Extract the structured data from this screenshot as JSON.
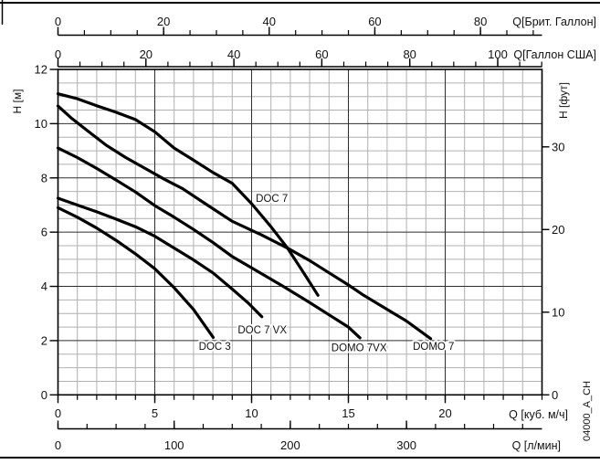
{
  "figure_id": "04000_A_CH",
  "colors": {
    "curve": "#000000",
    "grid_minor": "#b0b0b0",
    "grid_major": "#2e2e2e",
    "border": "#000000",
    "text": "#111111",
    "background": "#ffffff"
  },
  "chart_data": {
    "type": "line",
    "title": "",
    "xlim_m3h": [
      0,
      25
    ],
    "ylim_m": [
      0,
      12
    ],
    "grid": {
      "x_minor_step_m3h": 1,
      "x_major_step_m3h": 5,
      "y_minor_step_m": 0.5,
      "y_major_step_m": 2
    },
    "x_axes": [
      {
        "id": "brit",
        "label": "Q[Брит. Галлон]",
        "units_per_m3h": 3.6663,
        "majors": [
          0,
          20,
          40,
          60,
          80
        ],
        "minor_step": 5,
        "minor_max": 90,
        "position": "top-floating"
      },
      {
        "id": "usa",
        "label": "Q[Галлон США]",
        "units_per_m3h": 4.4029,
        "majors": [
          0,
          20,
          40,
          60,
          80,
          100
        ],
        "minor_step": 5,
        "minor_max": 110,
        "position": "top-attached"
      },
      {
        "id": "m3h",
        "label": "Q [куб. м/ч]",
        "units_per_m3h": 1,
        "majors": [
          0,
          5,
          10,
          15,
          20
        ],
        "minor_step": 1,
        "minor_max": 25,
        "position": "bottom-border"
      },
      {
        "id": "lmin",
        "label": "Q [л/мин]",
        "units_per_m3h": 16.667,
        "majors": [
          0,
          100,
          200,
          300
        ],
        "minor_step": 25,
        "minor_max": 400,
        "position": "bottom-floating"
      }
    ],
    "y_axes": [
      {
        "id": "m",
        "label": "H [м]",
        "m_per_unit": 1,
        "majors": [
          0,
          2,
          4,
          6,
          8,
          10,
          12
        ],
        "side": "left"
      },
      {
        "id": "ft",
        "label": "H [фут]",
        "m_per_unit": 0.3048,
        "majors": [
          0,
          10,
          20,
          30
        ],
        "side": "right"
      }
    ],
    "series": [
      {
        "name": "DOC 7",
        "label_at": [
          11.05,
          7.25
        ],
        "points": [
          [
            0,
            11.1
          ],
          [
            1,
            10.92
          ],
          [
            2,
            10.66
          ],
          [
            3,
            10.42
          ],
          [
            4,
            10.15
          ],
          [
            5,
            9.7
          ],
          [
            6,
            9.1
          ],
          [
            6.9,
            8.7
          ],
          [
            8,
            8.2
          ],
          [
            9,
            7.8
          ],
          [
            10,
            7.05
          ],
          [
            11,
            6.2
          ],
          [
            11.86,
            5.41
          ],
          [
            12.6,
            4.6
          ],
          [
            13.43,
            3.67
          ]
        ]
      },
      {
        "name": "DOMO 7",
        "label_at": [
          19.4,
          1.8
        ],
        "points": [
          [
            0,
            10.65
          ],
          [
            0.7,
            10.2
          ],
          [
            1.5,
            9.75
          ],
          [
            2.5,
            9.2
          ],
          [
            3.5,
            8.75
          ],
          [
            4.5,
            8.35
          ],
          [
            5.5,
            7.95
          ],
          [
            6.44,
            7.6
          ],
          [
            7.5,
            7.1
          ],
          [
            9,
            6.4
          ],
          [
            10.5,
            5.9
          ],
          [
            11.86,
            5.41
          ],
          [
            13,
            4.95
          ],
          [
            14,
            4.5
          ],
          [
            15,
            4.05
          ],
          [
            15.79,
            3.67
          ],
          [
            17,
            3.15
          ],
          [
            18,
            2.72
          ],
          [
            19.25,
            2.07
          ]
        ]
      },
      {
        "name": "DOMO 7VX",
        "label_at": [
          15.55,
          1.75
        ],
        "points": [
          [
            0,
            9.1
          ],
          [
            1,
            8.75
          ],
          [
            2,
            8.35
          ],
          [
            3,
            7.92
          ],
          [
            4,
            7.48
          ],
          [
            5,
            6.98
          ],
          [
            6,
            6.55
          ],
          [
            7,
            6.1
          ],
          [
            8,
            5.62
          ],
          [
            9,
            5.1
          ],
          [
            10,
            4.68
          ],
          [
            11.63,
            4.0
          ],
          [
            13,
            3.4
          ],
          [
            14,
            2.95
          ],
          [
            15,
            2.5
          ],
          [
            15.6,
            2.1
          ]
        ]
      },
      {
        "name": "DOC 7 VX",
        "label_at": [
          10.55,
          2.4
        ],
        "points": [
          [
            0,
            7.25
          ],
          [
            1,
            7.0
          ],
          [
            2,
            6.75
          ],
          [
            3,
            6.48
          ],
          [
            4,
            6.2
          ],
          [
            5,
            5.85
          ],
          [
            5.5,
            5.63
          ],
          [
            6.9,
            5.02
          ],
          [
            8,
            4.5
          ],
          [
            9,
            3.9
          ],
          [
            9.8,
            3.4
          ],
          [
            10.53,
            2.88
          ]
        ]
      },
      {
        "name": "DOC 3",
        "label_at": [
          8.1,
          1.8
        ],
        "points": [
          [
            0,
            6.9
          ],
          [
            1,
            6.55
          ],
          [
            2,
            6.15
          ],
          [
            3,
            5.7
          ],
          [
            4,
            5.2
          ],
          [
            5,
            4.65
          ],
          [
            6,
            3.95
          ],
          [
            7,
            3.15
          ],
          [
            8.02,
            2.12
          ]
        ]
      }
    ]
  }
}
